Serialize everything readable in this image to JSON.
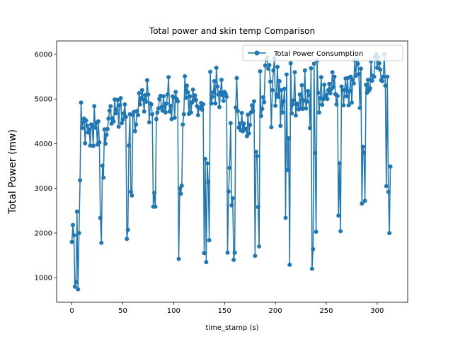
{
  "chart_data": {
    "type": "line",
    "title": "Total power and skin temp Comparison",
    "xlabel": "time_stamp (s)",
    "ylabel": "Total Power (mw)",
    "xlim": [
      -15,
      330
    ],
    "ylim": [
      450,
      6300
    ],
    "xticks": [
      0,
      50,
      100,
      150,
      200,
      250,
      300
    ],
    "yticks": [
      1000,
      2000,
      3000,
      4000,
      5000,
      6000
    ],
    "grid": false,
    "legend_position": "upper-right",
    "series": [
      {
        "name": "Total Power Consumption",
        "color": "#1f77b4",
        "marker": "circle",
        "points": [
          [
            0,
            1800
          ],
          [
            1,
            2180
          ],
          [
            2,
            1950
          ],
          [
            3,
            800
          ],
          [
            4,
            900
          ],
          [
            5,
            2480
          ],
          [
            6,
            740
          ],
          [
            7,
            2000
          ],
          [
            8,
            3180
          ],
          [
            9,
            4920
          ],
          [
            10,
            4350
          ],
          [
            11,
            4480
          ],
          [
            12,
            4560
          ],
          [
            13,
            4010
          ],
          [
            14,
            4520
          ],
          [
            15,
            4400
          ],
          [
            16,
            4250
          ],
          [
            17,
            4320
          ],
          [
            18,
            3960
          ],
          [
            19,
            4430
          ],
          [
            20,
            4380
          ],
          [
            21,
            3950
          ],
          [
            22,
            4840
          ],
          [
            23,
            4360
          ],
          [
            24,
            4470
          ],
          [
            25,
            3980
          ],
          [
            26,
            4500
          ],
          [
            27,
            4030
          ],
          [
            28,
            2340
          ],
          [
            29,
            1780
          ],
          [
            30,
            3510
          ],
          [
            31,
            3240
          ],
          [
            32,
            4320
          ],
          [
            33,
            4000
          ],
          [
            34,
            4200
          ],
          [
            35,
            4330
          ],
          [
            36,
            4560
          ],
          [
            37,
            4740
          ],
          [
            38,
            4840
          ],
          [
            39,
            4450
          ],
          [
            40,
            4570
          ],
          [
            41,
            4500
          ],
          [
            42,
            4990
          ],
          [
            43,
            4680
          ],
          [
            44,
            4760
          ],
          [
            45,
            4980
          ],
          [
            46,
            4380
          ],
          [
            47,
            4860
          ],
          [
            48,
            5020
          ],
          [
            49,
            4460
          ],
          [
            50,
            4540
          ],
          [
            51,
            4680
          ],
          [
            52,
            4880
          ],
          [
            53,
            4600
          ],
          [
            54,
            1870
          ],
          [
            55,
            2070
          ],
          [
            56,
            3960
          ],
          [
            57,
            4660
          ],
          [
            58,
            2920
          ],
          [
            59,
            2840
          ],
          [
            60,
            4640
          ],
          [
            61,
            4710
          ],
          [
            62,
            4280
          ],
          [
            63,
            4430
          ],
          [
            64,
            4730
          ],
          [
            65,
            4640
          ],
          [
            66,
            5130
          ],
          [
            67,
            4880
          ],
          [
            68,
            5020
          ],
          [
            69,
            5200
          ],
          [
            70,
            4990
          ],
          [
            71,
            4720
          ],
          [
            72,
            5090
          ],
          [
            73,
            4940
          ],
          [
            74,
            5420
          ],
          [
            75,
            5100
          ],
          [
            76,
            4480
          ],
          [
            77,
            4900
          ],
          [
            78,
            4880
          ],
          [
            79,
            4660
          ],
          [
            80,
            2590
          ],
          [
            81,
            2900
          ],
          [
            82,
            2590
          ],
          [
            83,
            4550
          ],
          [
            84,
            4700
          ],
          [
            85,
            4790
          ],
          [
            86,
            5000
          ],
          [
            87,
            5070
          ],
          [
            88,
            4820
          ],
          [
            89,
            4740
          ],
          [
            90,
            5060
          ],
          [
            91,
            4830
          ],
          [
            92,
            4700
          ],
          [
            93,
            4900
          ],
          [
            94,
            5100
          ],
          [
            95,
            5490
          ],
          [
            96,
            4720
          ],
          [
            97,
            4850
          ],
          [
            98,
            4550
          ],
          [
            99,
            5060
          ],
          [
            100,
            5040
          ],
          [
            101,
            4580
          ],
          [
            102,
            5160
          ],
          [
            103,
            5000
          ],
          [
            104,
            4950
          ],
          [
            105,
            1420
          ],
          [
            106,
            3000
          ],
          [
            107,
            2880
          ],
          [
            108,
            3060
          ],
          [
            109,
            4430
          ],
          [
            110,
            4660
          ],
          [
            111,
            5510
          ],
          [
            112,
            5030
          ],
          [
            113,
            5300
          ],
          [
            114,
            5150
          ],
          [
            115,
            4670
          ],
          [
            116,
            5060
          ],
          [
            117,
            4700
          ],
          [
            118,
            4920
          ],
          [
            119,
            5210
          ],
          [
            120,
            4970
          ],
          [
            121,
            5080
          ],
          [
            122,
            4980
          ],
          [
            123,
            4840
          ],
          [
            124,
            4640
          ],
          [
            125,
            4800
          ],
          [
            126,
            4810
          ],
          [
            127,
            4910
          ],
          [
            128,
            4760
          ],
          [
            129,
            4880
          ],
          [
            130,
            1550
          ],
          [
            131,
            3660
          ],
          [
            132,
            1350
          ],
          [
            133,
            3560
          ],
          [
            134,
            3140
          ],
          [
            135,
            1840
          ],
          [
            136,
            5610
          ],
          [
            137,
            4900
          ],
          [
            138,
            5050
          ],
          [
            139,
            5150
          ],
          [
            140,
            5400
          ],
          [
            141,
            4900
          ],
          [
            142,
            5700
          ],
          [
            143,
            5280
          ],
          [
            144,
            5100
          ],
          [
            145,
            4820
          ],
          [
            146,
            5150
          ],
          [
            147,
            5430
          ],
          [
            148,
            5090
          ],
          [
            149,
            4960
          ],
          [
            150,
            5160
          ],
          [
            151,
            5120
          ],
          [
            152,
            5050
          ],
          [
            153,
            1560
          ],
          [
            154,
            2930
          ],
          [
            155,
            3460
          ],
          [
            156,
            4460
          ],
          [
            157,
            2620
          ],
          [
            158,
            2780
          ],
          [
            159,
            1400
          ],
          [
            160,
            1560
          ],
          [
            161,
            4810
          ],
          [
            162,
            5470
          ],
          [
            163,
            4730
          ],
          [
            164,
            4360
          ],
          [
            165,
            4450
          ],
          [
            166,
            4300
          ],
          [
            167,
            4690
          ],
          [
            168,
            4280
          ],
          [
            169,
            4450
          ],
          [
            170,
            4330
          ],
          [
            171,
            4330
          ],
          [
            172,
            4170
          ],
          [
            173,
            4650
          ],
          [
            174,
            4230
          ],
          [
            175,
            4420
          ],
          [
            176,
            4700
          ],
          [
            177,
            4860
          ],
          [
            178,
            4730
          ],
          [
            179,
            4950
          ],
          [
            180,
            1490
          ],
          [
            181,
            3820
          ],
          [
            182,
            3720
          ],
          [
            183,
            2580
          ],
          [
            184,
            1700
          ],
          [
            185,
            5620
          ],
          [
            186,
            4620
          ],
          [
            187,
            4780
          ],
          [
            188,
            5040
          ],
          [
            189,
            4930
          ],
          [
            190,
            5750
          ],
          [
            191,
            5880
          ],
          [
            192,
            5930
          ],
          [
            193,
            5680
          ],
          [
            194,
            5760
          ],
          [
            195,
            5390
          ],
          [
            196,
            4370
          ],
          [
            197,
            5200
          ],
          [
            198,
            5640
          ],
          [
            199,
            5910
          ],
          [
            200,
            4850
          ],
          [
            201,
            5100
          ],
          [
            202,
            5720
          ],
          [
            203,
            5050
          ],
          [
            204,
            5400
          ],
          [
            205,
            4400
          ],
          [
            206,
            5200
          ],
          [
            207,
            4700
          ],
          [
            208,
            4950
          ],
          [
            209,
            5230
          ],
          [
            210,
            2340
          ],
          [
            211,
            5550
          ],
          [
            212,
            3410
          ],
          [
            213,
            4120
          ],
          [
            214,
            1290
          ],
          [
            215,
            5800
          ],
          [
            216,
            4680
          ],
          [
            217,
            4880
          ],
          [
            218,
            4970
          ],
          [
            219,
            5600
          ],
          [
            220,
            4630
          ],
          [
            221,
            4900
          ],
          [
            222,
            4880
          ],
          [
            223,
            4770
          ],
          [
            224,
            5100
          ],
          [
            225,
            4790
          ],
          [
            226,
            5310
          ],
          [
            227,
            4780
          ],
          [
            228,
            4970
          ],
          [
            229,
            5640
          ],
          [
            230,
            4790
          ],
          [
            231,
            4940
          ],
          [
            232,
            5180
          ],
          [
            233,
            5090
          ],
          [
            234,
            4350
          ],
          [
            235,
            5690
          ],
          [
            236,
            1200
          ],
          [
            237,
            1640
          ],
          [
            238,
            5790
          ],
          [
            239,
            3790
          ],
          [
            240,
            2030
          ],
          [
            241,
            5860
          ],
          [
            242,
            5140
          ],
          [
            243,
            4700
          ],
          [
            244,
            5020
          ],
          [
            245,
            5490
          ],
          [
            246,
            4870
          ],
          [
            247,
            5000
          ],
          [
            248,
            5320
          ],
          [
            249,
            5050
          ],
          [
            250,
            5100
          ],
          [
            251,
            5000
          ],
          [
            252,
            5200
          ],
          [
            253,
            5340
          ],
          [
            254,
            5130
          ],
          [
            255,
            5220
          ],
          [
            256,
            5600
          ],
          [
            257,
            5270
          ],
          [
            258,
            5500
          ],
          [
            259,
            5110
          ],
          [
            260,
            4880
          ],
          [
            261,
            5070
          ],
          [
            262,
            2390
          ],
          [
            263,
            3560
          ],
          [
            264,
            2040
          ],
          [
            265,
            5280
          ],
          [
            266,
            5200
          ],
          [
            267,
            4860
          ],
          [
            268,
            5200
          ],
          [
            269,
            5460
          ],
          [
            270,
            5060
          ],
          [
            271,
            5470
          ],
          [
            272,
            4860
          ],
          [
            273,
            5180
          ],
          [
            274,
            5500
          ],
          [
            275,
            4920
          ],
          [
            276,
            5430
          ],
          [
            277,
            5350
          ],
          [
            278,
            5870
          ],
          [
            279,
            5520
          ],
          [
            280,
            5860
          ],
          [
            281,
            5790
          ],
          [
            282,
            5560
          ],
          [
            283,
            4800
          ],
          [
            284,
            5680
          ],
          [
            285,
            2660
          ],
          [
            286,
            3930
          ],
          [
            287,
            3800
          ],
          [
            288,
            2720
          ],
          [
            289,
            5320
          ],
          [
            290,
            5140
          ],
          [
            291,
            5430
          ],
          [
            292,
            5190
          ],
          [
            293,
            5240
          ],
          [
            294,
            5850
          ],
          [
            295,
            5410
          ],
          [
            296,
            5520
          ],
          [
            297,
            5500
          ],
          [
            298,
            5940
          ],
          [
            299,
            6000
          ],
          [
            300,
            5700
          ],
          [
            301,
            5930
          ],
          [
            302,
            5800
          ],
          [
            303,
            5660
          ],
          [
            304,
            5420
          ],
          [
            305,
            5400
          ],
          [
            306,
            5500
          ],
          [
            307,
            6000
          ],
          [
            308,
            5300
          ],
          [
            309,
            3050
          ],
          [
            310,
            5500
          ],
          [
            311,
            2920
          ],
          [
            312,
            2000
          ],
          [
            313,
            3490
          ]
        ]
      }
    ]
  }
}
